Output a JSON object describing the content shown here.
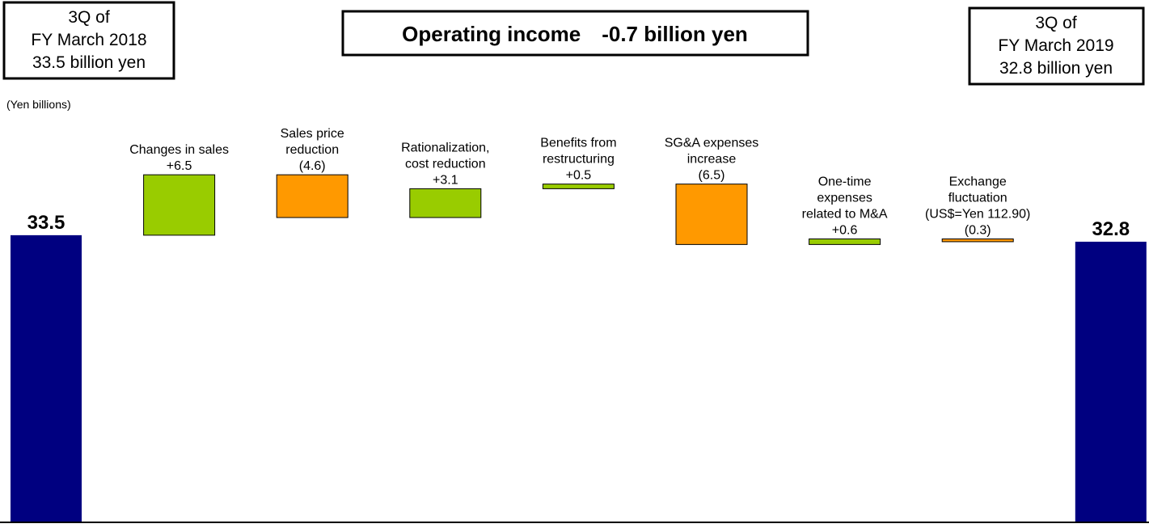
{
  "chart_data": {
    "type": "waterfall",
    "title": "Operating income　-0.7 billion yen",
    "unit_label": "(Yen billions)",
    "start_box": [
      "3Q of",
      "FY March 2018",
      "33.5 billion yen"
    ],
    "end_box": [
      "3Q of",
      "FY March 2019",
      "32.8 billion yen"
    ],
    "categories": [
      null,
      [
        "Changes in sales"
      ],
      [
        "Sales price",
        "reduction"
      ],
      [
        "Rationalization,",
        "cost reduction"
      ],
      [
        "Benefits from",
        "restructuring"
      ],
      [
        "SG&A expenses",
        "increase"
      ],
      [
        "One-time",
        "expenses",
        "related to M&A"
      ],
      [
        "Exchange",
        "fluctuation",
        "(US$=Yen 112.90)"
      ],
      null
    ],
    "measure": [
      "absolute",
      "relative",
      "relative",
      "relative",
      "relative",
      "relative",
      "relative",
      "relative",
      "absolute"
    ],
    "values": [
      33.5,
      6.5,
      -4.6,
      3.1,
      0.5,
      -6.5,
      0.6,
      -0.3,
      32.8
    ],
    "value_labels": [
      "33.5",
      "+6.5",
      "(4.6)",
      "+3.1",
      "+0.5",
      "(6.5)",
      "+0.6",
      "(0.3)",
      "32.8"
    ],
    "colors": {
      "total": "#000080",
      "increase": "#99cc00",
      "decrease": "#ff9900"
    },
    "ylim": [
      2.7,
      58.8
    ]
  }
}
